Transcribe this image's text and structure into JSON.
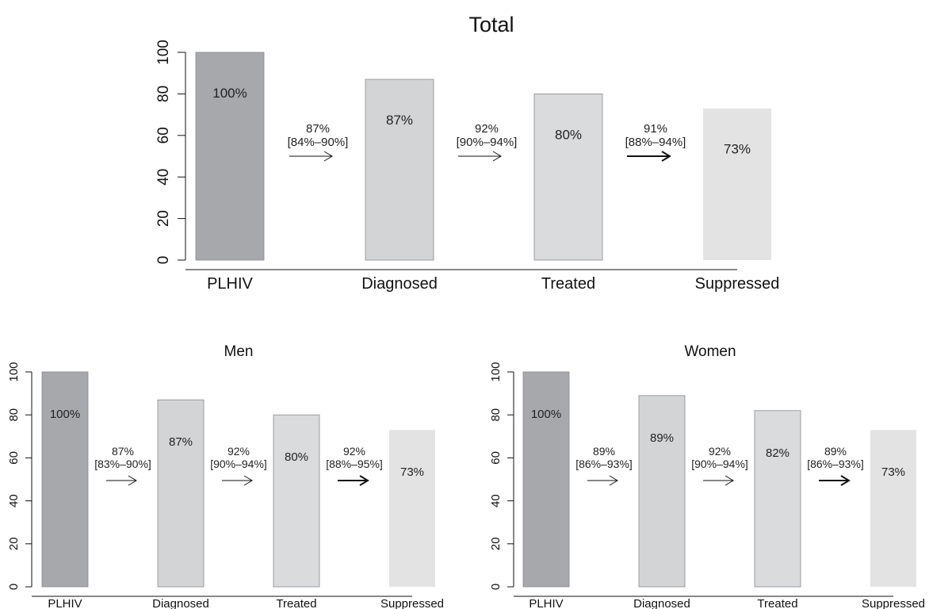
{
  "chart_data": [
    {
      "type": "bar",
      "title": "Total",
      "categories": [
        "PLHIV",
        "Diagnosed",
        "Treated",
        "Suppressed"
      ],
      "values": [
        100,
        87,
        80,
        73
      ],
      "bar_labels": [
        "100%",
        "87%",
        "80%",
        "73%"
      ],
      "transitions": [
        {
          "rate": "87%",
          "ci": "[84%–90%]"
        },
        {
          "rate": "92%",
          "ci": "[90%–94%]"
        },
        {
          "rate": "91%",
          "ci": "[88%–94%]"
        }
      ],
      "ylim": [
        0,
        100
      ],
      "yticks": [
        "0",
        "20",
        "40",
        "60",
        "80",
        "100"
      ],
      "colors": [
        "#a7a8ab",
        "#d3d4d6",
        "#dadbdc",
        "#e3e3e4"
      ],
      "grid": false
    },
    {
      "type": "bar",
      "title": "Men",
      "categories": [
        "PLHIV",
        "Diagnosed",
        "Treated",
        "Suppressed"
      ],
      "values": [
        100,
        87,
        80,
        73
      ],
      "bar_labels": [
        "100%",
        "87%",
        "80%",
        "73%"
      ],
      "transitions": [
        {
          "rate": "87%",
          "ci": "[83%–90%]"
        },
        {
          "rate": "92%",
          "ci": "[90%–94%]"
        },
        {
          "rate": "92%",
          "ci": "[88%–95%]"
        }
      ],
      "ylim": [
        0,
        100
      ],
      "yticks": [
        "0",
        "20",
        "40",
        "60",
        "80",
        "100"
      ],
      "colors": [
        "#a7a8ab",
        "#d3d4d6",
        "#dadbdc",
        "#e3e3e4"
      ],
      "grid": false
    },
    {
      "type": "bar",
      "title": "Women",
      "categories": [
        "PLHIV",
        "Diagnosed",
        "Treated",
        "Suppressed"
      ],
      "values": [
        100,
        89,
        82,
        73
      ],
      "bar_labels": [
        "100%",
        "89%",
        "82%",
        "73%"
      ],
      "transitions": [
        {
          "rate": "89%",
          "ci": "[86%–93%]"
        },
        {
          "rate": "92%",
          "ci": "[90%–94%]"
        },
        {
          "rate": "89%",
          "ci": "[86%–93%]"
        }
      ],
      "ylim": [
        0,
        100
      ],
      "yticks": [
        "0",
        "20",
        "40",
        "60",
        "80",
        "100"
      ],
      "colors": [
        "#a7a8ab",
        "#d3d4d6",
        "#dadbdc",
        "#e3e3e4"
      ],
      "grid": false
    }
  ]
}
